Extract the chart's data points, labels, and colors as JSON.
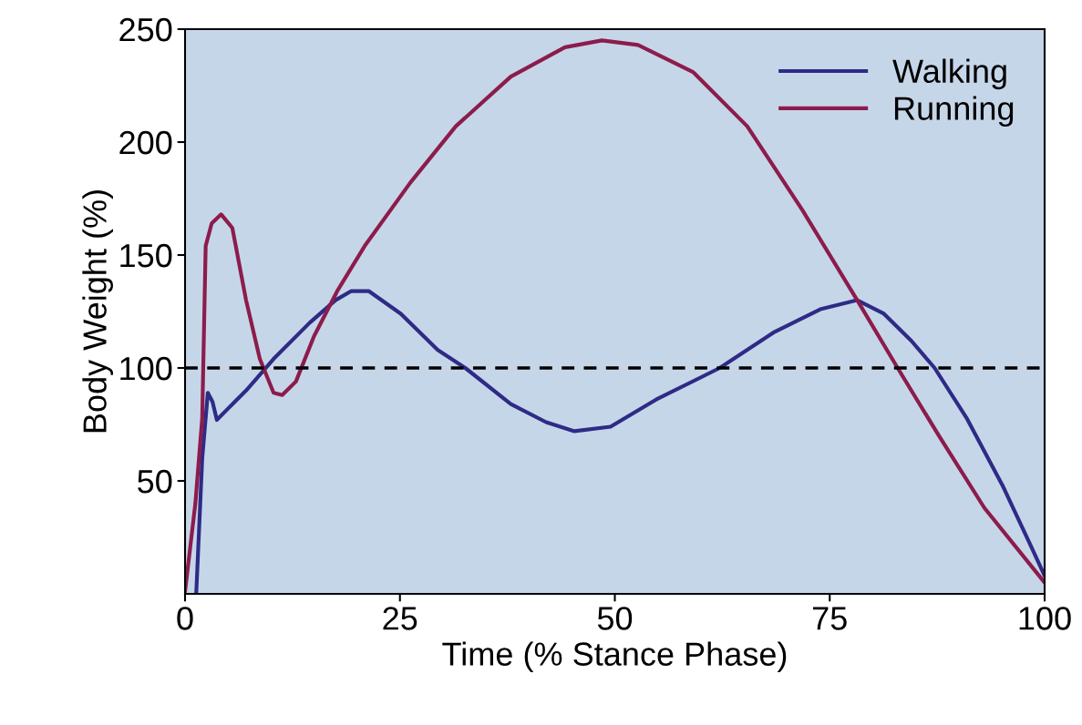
{
  "chart_data": {
    "type": "line",
    "xlabel": "Time (% Stance Phase)",
    "ylabel": "Body Weight (%)",
    "xlim": [
      0,
      100
    ],
    "ylim": [
      0,
      250
    ],
    "xticks": [
      0,
      25,
      50,
      75,
      100
    ],
    "yticks": [
      50,
      100,
      150,
      200,
      250
    ],
    "grid": false,
    "legend": "top right",
    "marker": "none",
    "line_style": "solid",
    "ref_lines": [
      {
        "axis": "y",
        "value": 100,
        "color": "#000000",
        "line_style": "dashed"
      }
    ],
    "series": [
      {
        "name": "Walking",
        "color": "#2e2b86",
        "x": [
          1.3,
          2.0,
          2.65,
          3.2,
          3.7,
          5.0,
          7.1,
          10.3,
          14.5,
          17.5,
          19.3,
          21.4,
          25.1,
          29.4,
          32.6,
          37.9,
          42.0,
          45.3,
          49.5,
          54.8,
          62.2,
          68.6,
          73.9,
          78.2,
          81.3,
          84.5,
          87.2,
          90.9,
          95.1,
          98.3,
          100
        ],
        "values": [
          0,
          60,
          89,
          85,
          77,
          82,
          90,
          104,
          120,
          130,
          134,
          134,
          124,
          108,
          100,
          84,
          76,
          72,
          74,
          86,
          100,
          116,
          126,
          130,
          124,
          112,
          100,
          78,
          48,
          22,
          8
        ]
      },
      {
        "name": "Running",
        "color": "#8c1c4c",
        "x": [
          0,
          1.2,
          2.0,
          2.4,
          3.1,
          4.2,
          5.5,
          7.1,
          8.7,
          10.3,
          11.3,
          12.9,
          15,
          17.7,
          20.9,
          26.2,
          31.5,
          37.9,
          44.2,
          48.5,
          52.7,
          59.1,
          65.4,
          71.8,
          78.2,
          82.9,
          87.7,
          93,
          100
        ],
        "values": [
          1,
          40,
          78,
          154,
          164,
          168,
          162,
          130,
          104,
          89,
          88,
          94,
          114,
          134,
          154,
          182,
          207,
          229,
          242,
          245,
          243,
          231,
          207,
          170,
          130,
          100,
          70,
          38,
          5
        ]
      }
    ]
  }
}
